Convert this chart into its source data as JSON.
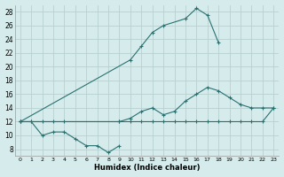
{
  "xlabel": "Humidex (Indice chaleur)",
  "background_color": "#d6ecec",
  "grid_color": "#b8d0d0",
  "line_color": "#2a7070",
  "xlim": [
    -0.5,
    23.5
  ],
  "ylim": [
    7,
    29
  ],
  "yticks": [
    8,
    10,
    12,
    14,
    16,
    18,
    20,
    22,
    24,
    26,
    28
  ],
  "xticks": [
    0,
    1,
    2,
    3,
    4,
    5,
    6,
    7,
    8,
    9,
    10,
    11,
    12,
    13,
    14,
    15,
    16,
    17,
    18,
    19,
    20,
    21,
    22,
    23
  ],
  "line1_x": [
    0,
    1,
    2,
    3,
    4,
    5,
    6,
    7,
    8,
    9
  ],
  "line1_y": [
    12,
    12,
    10,
    10.5,
    10.5,
    9.5,
    8.5,
    8.5,
    7.5,
    8.5
  ],
  "line2_x": [
    0,
    1,
    2,
    3,
    4,
    9,
    10,
    11,
    12,
    13,
    14,
    15,
    16,
    17,
    18,
    19,
    20,
    21,
    22,
    23
  ],
  "line2_y": [
    12,
    12,
    12,
    12,
    12,
    12,
    12,
    12,
    12,
    12,
    12,
    12,
    12,
    12,
    12,
    12,
    12,
    12,
    12,
    14
  ],
  "line3_x": [
    0,
    9,
    10,
    11,
    12,
    13,
    14,
    15,
    16,
    17,
    18,
    19,
    20,
    21,
    22,
    23
  ],
  "line3_y": [
    12,
    12,
    12.5,
    13.5,
    14,
    13,
    13.5,
    15,
    16,
    17,
    16.5,
    15.5,
    14.5,
    14,
    14,
    14
  ],
  "line4_x": [
    0,
    10,
    11,
    12,
    13,
    14,
    15,
    16,
    17,
    18,
    19,
    20,
    21,
    22,
    23
  ],
  "line4_y": [
    12,
    21,
    23,
    25,
    26,
    null,
    27,
    28.5,
    27.5,
    23.5,
    null,
    null,
    null,
    null,
    null
  ]
}
